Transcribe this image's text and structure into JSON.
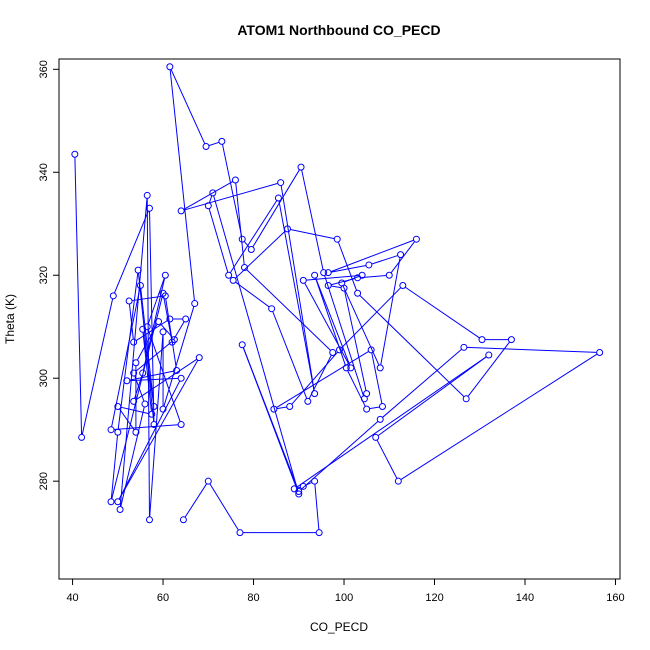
{
  "chart_data": {
    "type": "scatter",
    "title": "ATOM1 Northbound CO_PECD",
    "xlabel": "CO_PECD",
    "ylabel": "Theta (K)",
    "xlim": [
      37,
      161
    ],
    "ylim": [
      261,
      362
    ],
    "xticks": [
      40,
      60,
      80,
      100,
      120,
      140,
      160
    ],
    "yticks": [
      280,
      300,
      320,
      340,
      360
    ],
    "grid": false,
    "line_color": "#0000ff",
    "point_color": "#0000ff",
    "series": [
      {
        "style": "points-and-lines",
        "x": [
          40.5,
          42,
          49,
          57,
          58,
          54.5,
          50,
          48.5,
          60,
          62,
          65,
          61.5,
          53.5,
          52.5,
          60.5,
          63,
          52,
          64,
          50,
          68,
          53.5,
          55.5,
          60.5,
          56.5,
          64,
          48.5,
          55,
          58,
          55.5,
          57.5,
          50,
          54,
          54,
          59,
          62.5,
          53.5,
          56,
          50.5,
          56.5,
          57,
          60,
          60,
          67,
          61.5,
          69.5,
          73,
          77.5,
          79.5,
          90.5,
          95.5,
          104.5,
          105,
          100,
          96.5,
          103,
          110,
          116,
          96.5,
          105.5,
          112.5,
          108,
          99.5,
          104,
          91,
          101.5,
          93.5,
          100.5,
          105,
          108.5,
          106,
          84.5,
          88,
          99,
          113,
          130.5,
          137,
          127,
          103,
          98.5,
          87.5,
          75.5,
          84,
          92,
          97.5,
          78,
          76,
          64,
          86,
          93.5,
          85.5,
          74.5,
          70,
          71,
          90,
          77.5,
          90,
          108,
          126.5,
          156.5,
          112,
          107,
          132,
          89,
          91,
          93.5,
          94.5,
          77,
          70,
          64.5
        ],
        "y": [
          343.5,
          288.5,
          316,
          333,
          291,
          321,
          289.5,
          276,
          316.5,
          307,
          311.5,
          311.5,
          307,
          315,
          316,
          301.5,
          299.5,
          300,
          276,
          304,
          295.5,
          301,
          320,
          310,
          291,
          290,
          318,
          294.5,
          309.5,
          293,
          294.5,
          289.5,
          303,
          311,
          307.5,
          301,
          295,
          274.5,
          335.5,
          272.5,
          309,
          294,
          314.5,
          360.5,
          345,
          346,
          327,
          325,
          341,
          320.5,
          296,
          297,
          317.5,
          318,
          319.5,
          320,
          327,
          320.5,
          322,
          324,
          302,
          318.5,
          320,
          319,
          302,
          320,
          302,
          294,
          294.5,
          305.5,
          294,
          294.5,
          305.5,
          318,
          307.5,
          307.5,
          296,
          316.5,
          327,
          329,
          319,
          313.5,
          295.5,
          305,
          321.5,
          338.5,
          332.5,
          338,
          297,
          335,
          320,
          333.5,
          336,
          277.5,
          306.5,
          278,
          292,
          306,
          305,
          280,
          288.5,
          304.5,
          278.5,
          279,
          280,
          270,
          270,
          280,
          272.5
        ]
      }
    ]
  }
}
